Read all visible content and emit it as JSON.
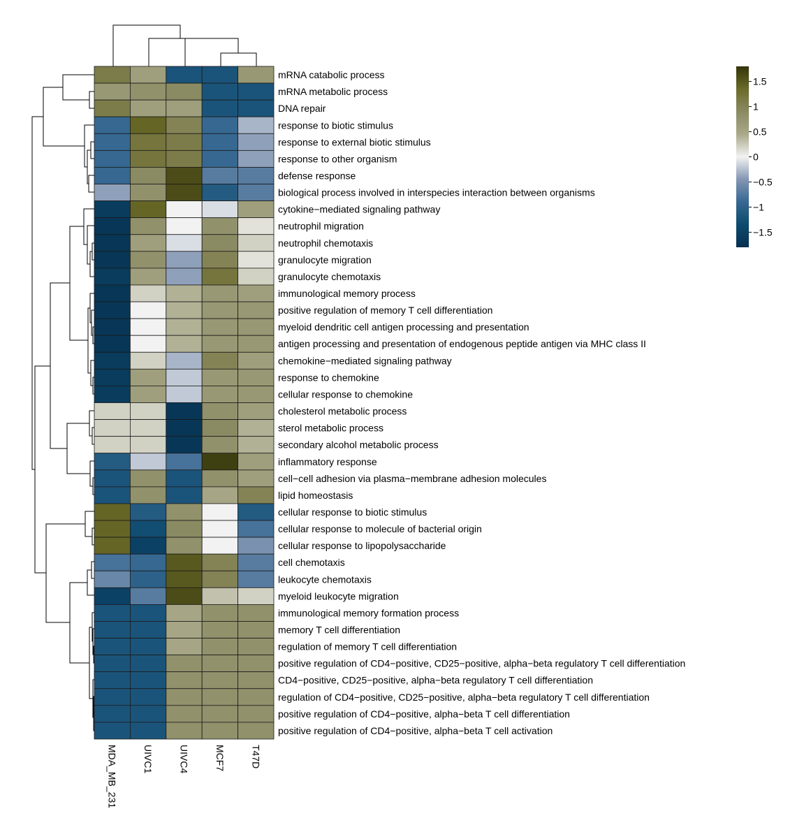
{
  "chart_data": {
    "type": "heatmap",
    "columns": [
      "MDA_MB_231",
      "UIVC1",
      "UIVC4",
      "MCF7",
      "T47D"
    ],
    "rows": [
      "mRNA catabolic process",
      "mRNA metabolic process",
      "DNA repair",
      "response to biotic stimulus",
      "response to external biotic stimulus",
      "response to other organism",
      "defense response",
      "biological process involved in interspecies interaction between organisms",
      "cytokine−mediated signaling pathway",
      "neutrophil migration",
      "neutrophil chemotaxis",
      "granulocyte migration",
      "granulocyte chemotaxis",
      "immunological memory process",
      "positive regulation of memory T cell differentiation",
      "myeloid dendritic cell antigen processing and presentation",
      "antigen processing and presentation of endogenous peptide antigen via MHC class II",
      "chemokine−mediated signaling pathway",
      "response to chemokine",
      "cellular response to chemokine",
      "cholesterol metabolic process",
      "sterol metabolic process",
      "secondary alcohol metabolic process",
      "inflammatory response",
      "cell−cell adhesion via plasma−membrane adhesion molecules",
      "lipid homeostasis",
      "cellular response to biotic stimulus",
      "cellular response to molecule of bacterial origin",
      "cellular response to lipopolysaccharide",
      "cell chemotaxis",
      "leukocyte chemotaxis",
      "myeloid leukocyte migration",
      "immunological memory formation process",
      "memory T cell differentiation",
      "regulation of memory T cell differentiation",
      "positive regulation of CD4−positive, CD25−positive, alpha−beta regulatory T cell differentiation",
      "CD4−positive, CD25−positive, alpha−beta regulatory T cell differentiation",
      "regulation of CD4−positive, CD25−positive, alpha−beta regulatory T cell differentiation",
      "positive regulation of CD4−positive, alpha−beta T cell differentiation",
      "positive regulation of CD4−positive, alpha−beta T cell activation"
    ],
    "values": [
      [
        1.1,
        0.6,
        -1.2,
        -1.2,
        0.7
      ],
      [
        0.7,
        0.8,
        0.9,
        -1.2,
        -1.2
      ],
      [
        1.1,
        0.6,
        0.6,
        -1.2,
        -1.2
      ],
      [
        -0.9,
        1.4,
        1.0,
        -0.9,
        -0.3
      ],
      [
        -0.9,
        1.2,
        1.1,
        -0.9,
        -0.4
      ],
      [
        -0.9,
        1.2,
        1.1,
        -0.9,
        -0.4
      ],
      [
        -0.9,
        0.9,
        1.6,
        -0.7,
        -0.7
      ],
      [
        -0.4,
        0.8,
        1.6,
        -1.1,
        -0.7
      ],
      [
        -1.6,
        1.4,
        0.0,
        -0.1,
        0.6
      ],
      [
        -1.7,
        0.8,
        0.0,
        0.8,
        0.1
      ],
      [
        -1.7,
        0.6,
        -0.1,
        0.9,
        0.2
      ],
      [
        -1.7,
        0.8,
        -0.4,
        1.0,
        0.1
      ],
      [
        -1.6,
        0.6,
        -0.4,
        1.2,
        0.2
      ],
      [
        -1.7,
        0.2,
        0.4,
        0.7,
        0.6
      ],
      [
        -1.7,
        0.0,
        0.4,
        0.7,
        0.7
      ],
      [
        -1.7,
        0.0,
        0.4,
        0.7,
        0.7
      ],
      [
        -1.7,
        0.0,
        0.4,
        0.7,
        0.7
      ],
      [
        -1.6,
        0.2,
        -0.3,
        1.0,
        0.6
      ],
      [
        -1.6,
        0.6,
        -0.2,
        0.7,
        0.7
      ],
      [
        -1.6,
        0.6,
        -0.2,
        0.7,
        0.7
      ],
      [
        0.2,
        0.2,
        -1.7,
        0.8,
        0.6
      ],
      [
        0.2,
        0.2,
        -1.7,
        0.9,
        0.4
      ],
      [
        0.2,
        0.2,
        -1.7,
        0.8,
        0.4
      ],
      [
        -1.1,
        -0.2,
        -0.8,
        1.7,
        0.6
      ],
      [
        -1.2,
        0.8,
        -1.2,
        0.8,
        0.6
      ],
      [
        -1.2,
        0.8,
        -1.2,
        0.5,
        1.0
      ],
      [
        1.4,
        -1.1,
        0.8,
        0.0,
        -1.1
      ],
      [
        1.4,
        -1.3,
        0.9,
        0.0,
        -0.8
      ],
      [
        1.4,
        -1.5,
        0.8,
        0.0,
        -0.5
      ],
      [
        -0.8,
        -0.9,
        1.5,
        1.0,
        -0.7
      ],
      [
        -0.6,
        -1.0,
        1.5,
        1.0,
        -0.7
      ],
      [
        -1.5,
        -0.7,
        1.6,
        0.3,
        0.2
      ],
      [
        -1.2,
        -1.2,
        0.5,
        0.8,
        0.8
      ],
      [
        -1.2,
        -1.2,
        0.5,
        0.8,
        0.8
      ],
      [
        -1.2,
        -1.2,
        0.5,
        0.8,
        0.8
      ],
      [
        -1.2,
        -1.2,
        0.8,
        0.8,
        0.8
      ],
      [
        -1.2,
        -1.2,
        0.8,
        0.8,
        0.8
      ],
      [
        -1.2,
        -1.2,
        0.8,
        0.8,
        0.8
      ],
      [
        -1.2,
        -1.2,
        0.8,
        0.8,
        0.8
      ],
      [
        -1.2,
        -1.2,
        0.8,
        0.8,
        0.8
      ]
    ],
    "color_scale": {
      "min": -1.8,
      "max": 1.8,
      "colors": [
        "#06304f",
        "#0d4a6e",
        "#366891",
        "#8396b3",
        "#f2f2f2",
        "#a9a98a",
        "#8a8a63",
        "#6b6b2a",
        "#33340a"
      ],
      "ticks": [
        1.5,
        1,
        0.5,
        0,
        -0.5,
        -1,
        -1.5
      ],
      "tick_labels": [
        "1.5",
        "1",
        "0.5",
        "0",
        "−0.5",
        "−1",
        "−1.5"
      ]
    },
    "legend_position": "top-right",
    "dendrograms": [
      "top",
      "left"
    ]
  }
}
